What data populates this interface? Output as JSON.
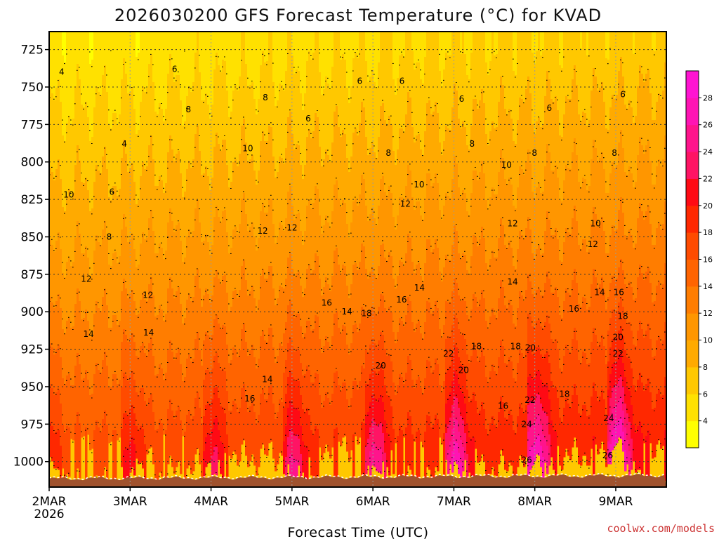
{
  "chart_data": {
    "type": "heatmap",
    "title": "2026030200 GFS Forecast Temperature (°C) for KVAD",
    "xlabel": "Forecast Time (UTC)",
    "ylabel": "",
    "credit": "coolwx.com/models",
    "x_range_hours": [
      0,
      183
    ],
    "y_range_hpa": [
      713,
      1017
    ],
    "y_ticks": [
      {
        "value": 725,
        "label": "725"
      },
      {
        "value": 750,
        "label": "750"
      },
      {
        "value": 775,
        "label": "775"
      },
      {
        "value": 800,
        "label": "800"
      },
      {
        "value": 825,
        "label": "825"
      },
      {
        "value": 850,
        "label": "850"
      },
      {
        "value": 875,
        "label": "875"
      },
      {
        "value": 900,
        "label": "900"
      },
      {
        "value": 925,
        "label": "925"
      },
      {
        "value": 950,
        "label": "950"
      },
      {
        "value": 975,
        "label": "975"
      },
      {
        "value": 1000,
        "label": "1000"
      }
    ],
    "x_ticks": [
      {
        "hour": 0,
        "label": "2MAR",
        "sublabel": "2026"
      },
      {
        "hour": 24,
        "label": "3MAR"
      },
      {
        "hour": 48,
        "label": "4MAR"
      },
      {
        "hour": 72,
        "label": "5MAR"
      },
      {
        "hour": 96,
        "label": "6MAR"
      },
      {
        "hour": 120,
        "label": "7MAR"
      },
      {
        "hour": 144,
        "label": "8MAR"
      },
      {
        "hour": 168,
        "label": "9MAR"
      }
    ],
    "colorbar": {
      "labels": [
        "4",
        "6",
        "8",
        "10",
        "12",
        "14",
        "16",
        "18",
        "20",
        "22",
        "24",
        "26",
        "28"
      ],
      "levels": [
        2,
        4,
        6,
        8,
        10,
        12,
        14,
        16,
        18,
        20,
        22,
        24,
        26,
        28,
        30
      ],
      "colors": [
        "#ffff00",
        "#ffe100",
        "#ffc800",
        "#ffaa00",
        "#ff9600",
        "#ff7d00",
        "#ff6400",
        "#ff4b00",
        "#ff2800",
        "#ff0a14",
        "#ff1464",
        "#ff148c",
        "#ff14b4",
        "#ff14d2"
      ]
    },
    "contour_labels": [
      {
        "text": "4",
        "hour": 3.7,
        "p": 740
      },
      {
        "text": "4",
        "hour": 22.3,
        "p": 788
      },
      {
        "text": "6",
        "hour": 37.2,
        "p": 738
      },
      {
        "text": "6",
        "hour": 18.6,
        "p": 820
      },
      {
        "text": "6",
        "hour": 76.8,
        "p": 771
      },
      {
        "text": "6",
        "hour": 92.1,
        "p": 746
      },
      {
        "text": "6",
        "hour": 104.6,
        "p": 746
      },
      {
        "text": "6",
        "hour": 122.3,
        "p": 758
      },
      {
        "text": "6",
        "hour": 148.3,
        "p": 764
      },
      {
        "text": "6",
        "hour": 170.1,
        "p": 755
      },
      {
        "text": "8",
        "hour": 41.3,
        "p": 765
      },
      {
        "text": "8",
        "hour": 64.1,
        "p": 757
      },
      {
        "text": "8",
        "hour": 17.8,
        "p": 850
      },
      {
        "text": "8",
        "hour": 100.6,
        "p": 794
      },
      {
        "text": "8",
        "hour": 125.4,
        "p": 788
      },
      {
        "text": "8",
        "hour": 143.9,
        "p": 794
      },
      {
        "text": "8",
        "hour": 167.6,
        "p": 794
      },
      {
        "text": "10",
        "hour": 5.8,
        "p": 822
      },
      {
        "text": "10",
        "hour": 58.9,
        "p": 791
      },
      {
        "text": "10",
        "hour": 109.7,
        "p": 815
      },
      {
        "text": "10",
        "hour": 135.6,
        "p": 802
      },
      {
        "text": "10",
        "hour": 162.0,
        "p": 841
      },
      {
        "text": "12",
        "hour": 11.0,
        "p": 878
      },
      {
        "text": "12",
        "hour": 29.3,
        "p": 889
      },
      {
        "text": "12",
        "hour": 63.3,
        "p": 846
      },
      {
        "text": "12",
        "hour": 72.0,
        "p": 844
      },
      {
        "text": "12",
        "hour": 105.6,
        "p": 828
      },
      {
        "text": "12",
        "hour": 137.4,
        "p": 841
      },
      {
        "text": "12",
        "hour": 161.2,
        "p": 855
      },
      {
        "text": "14",
        "hour": 11.7,
        "p": 915
      },
      {
        "text": "14",
        "hour": 29.5,
        "p": 914
      },
      {
        "text": "14",
        "hour": 64.7,
        "p": 945
      },
      {
        "text": "14",
        "hour": 88.3,
        "p": 900
      },
      {
        "text": "14",
        "hour": 109.8,
        "p": 884
      },
      {
        "text": "14",
        "hour": 137.4,
        "p": 880
      },
      {
        "text": "14",
        "hour": 163.2,
        "p": 887
      },
      {
        "text": "16",
        "hour": 59.5,
        "p": 958
      },
      {
        "text": "16",
        "hour": 82.3,
        "p": 894
      },
      {
        "text": "16",
        "hour": 104.5,
        "p": 892
      },
      {
        "text": "16",
        "hour": 134.6,
        "p": 963
      },
      {
        "text": "16",
        "hour": 155.6,
        "p": 898
      },
      {
        "text": "16",
        "hour": 168.9,
        "p": 887
      },
      {
        "text": "18",
        "hour": 94.1,
        "p": 901
      },
      {
        "text": "18",
        "hour": 126.7,
        "p": 923
      },
      {
        "text": "18",
        "hour": 138.3,
        "p": 923
      },
      {
        "text": "18",
        "hour": 152.8,
        "p": 955
      },
      {
        "text": "18",
        "hour": 170.1,
        "p": 903
      },
      {
        "text": "20",
        "hour": 98.3,
        "p": 936
      },
      {
        "text": "20",
        "hour": 122.9,
        "p": 939
      },
      {
        "text": "20",
        "hour": 142.7,
        "p": 924
      },
      {
        "text": "20",
        "hour": 168.7,
        "p": 917
      },
      {
        "text": "22",
        "hour": 118.4,
        "p": 928
      },
      {
        "text": "22",
        "hour": 142.6,
        "p": 959
      },
      {
        "text": "22",
        "hour": 168.7,
        "p": 928
      },
      {
        "text": "24",
        "hour": 141.6,
        "p": 975
      },
      {
        "text": "24",
        "hour": 165.9,
        "p": 971
      },
      {
        "text": "26",
        "hour": 141.6,
        "p": 999
      },
      {
        "text": "26",
        "hour": 165.6,
        "p": 996
      }
    ]
  }
}
